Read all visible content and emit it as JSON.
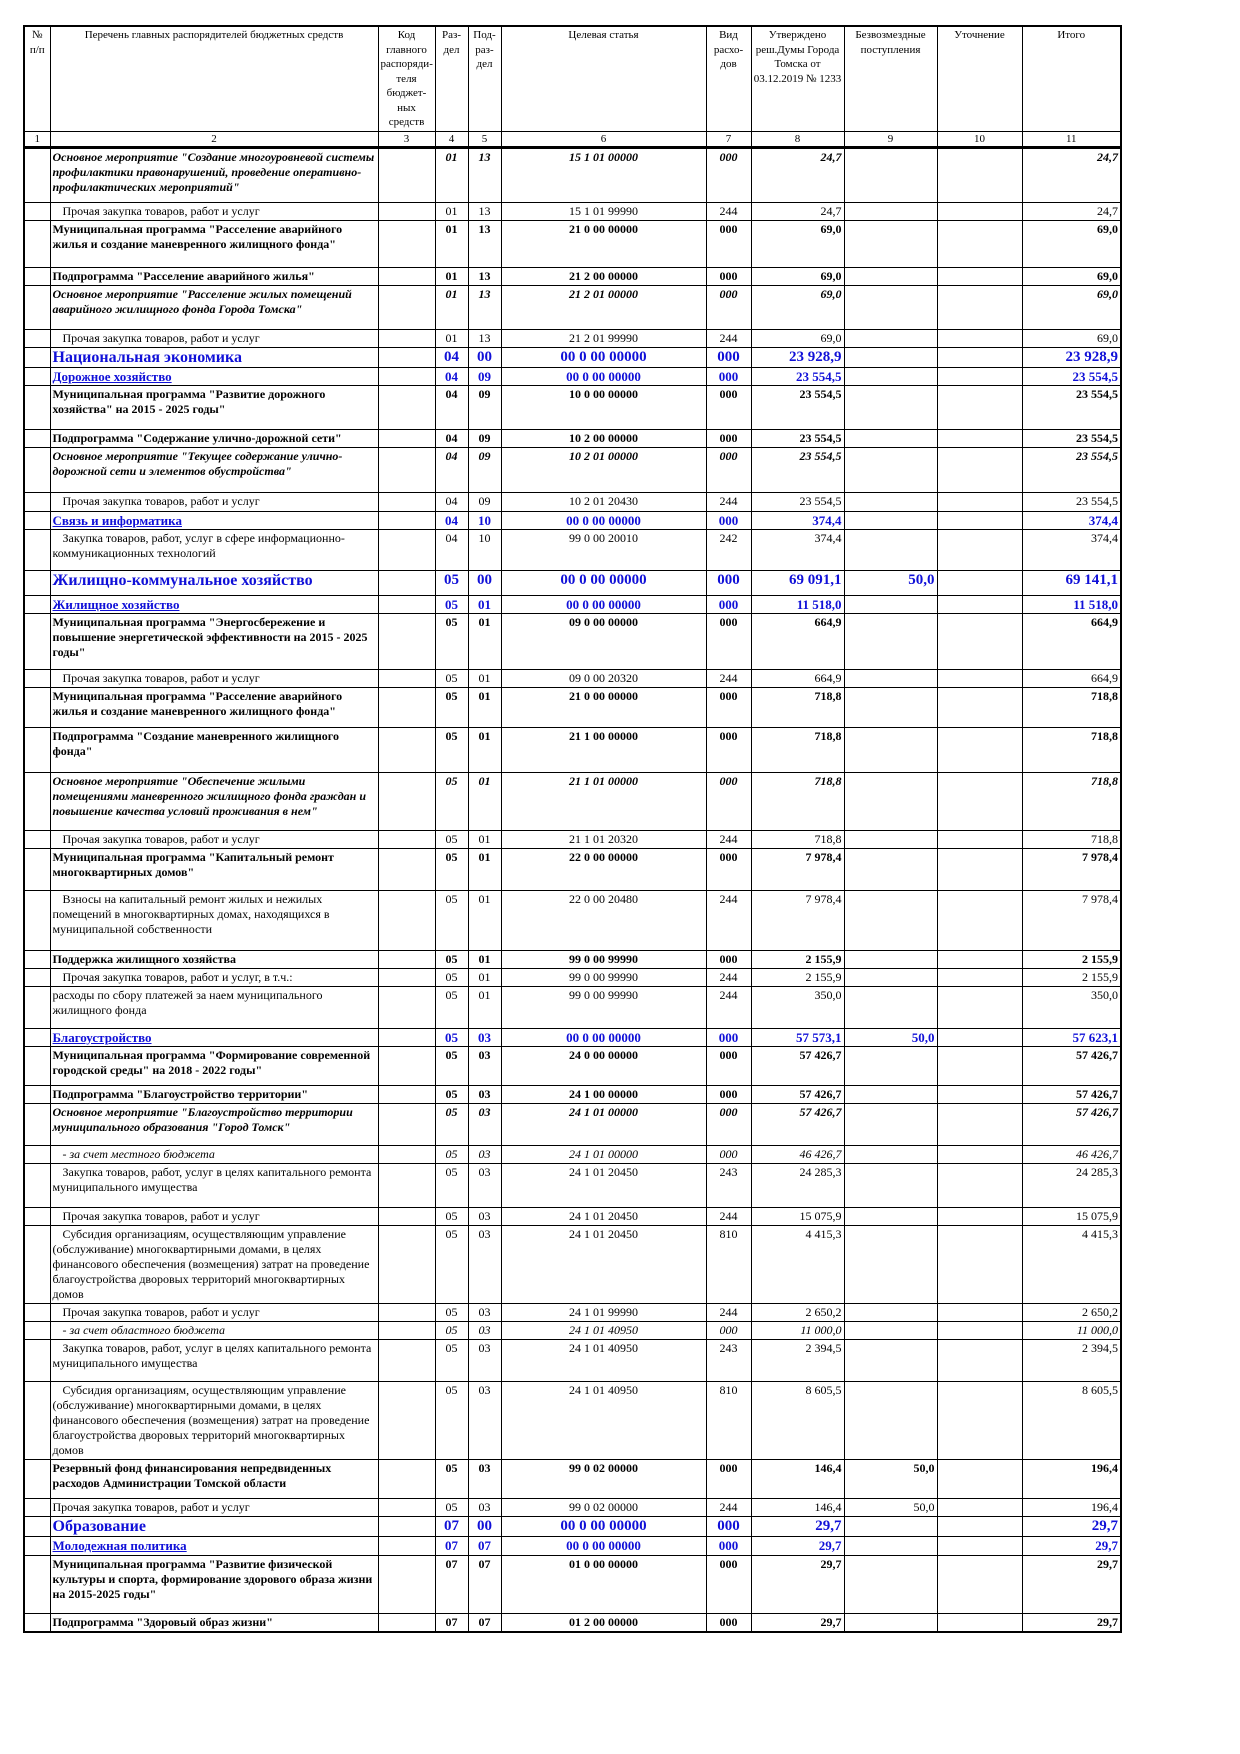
{
  "header": {
    "cols": [
      "№ п/п",
      "Перечень главных распорядителей бюджетных средств",
      "Код главного распоряди-теля бюджет-ных средств",
      "Раз-дел",
      "Под-раз-дел",
      "Целевая статья",
      "Вид расхо-дов",
      "Утверждено реш.Думы Города Томска от 03.12.2019 № 1233",
      "Безвозмездные поступления",
      "Уточнение",
      "Итого"
    ],
    "nums": [
      "1",
      "2",
      "3",
      "4",
      "5",
      "6",
      "7",
      "8",
      "9",
      "10",
      "11"
    ]
  },
  "colors": {
    "section": "#1010d8",
    "text": "#000000"
  },
  "rows": [
    {
      "s": "bi",
      "n": "Основное мероприятие \"Создание многоуровневой системы профилактики правонарушений, проведение оперативно-профилактических мероприятий\"",
      "r": "01",
      "p": "13",
      "t": "15 1 01 00000",
      "v": "000",
      "a": "24,7",
      "g": "",
      "u": "",
      "z": "24,7"
    },
    {
      "s": "n",
      "ind": true,
      "n": "Прочая закупка товаров, работ и услуг",
      "r": "01",
      "p": "13",
      "t": "15 1 01 99990",
      "v": "244",
      "a": "24,7",
      "g": "",
      "u": "",
      "z": "24,7"
    },
    {
      "s": "b",
      "n": "Муниципальная программа \"Расселение аварийного жилья и создание маневренного жилищного фонда\"",
      "r": "01",
      "p": "13",
      "t": "21 0 00 00000",
      "v": "000",
      "a": "69,0",
      "g": "",
      "u": "",
      "z": "69,0"
    },
    {
      "s": "b",
      "n": "Подпрограмма \"Расселение аварийного жилья\"",
      "r": "01",
      "p": "13",
      "t": "21 2 00 00000",
      "v": "000",
      "a": "69,0",
      "g": "",
      "u": "",
      "z": "69,0"
    },
    {
      "s": "bi",
      "n": "Основное мероприятие \"Расселение жилых помещений аварийного жилищного фонда Города Томска\"",
      "r": "01",
      "p": "13",
      "t": "21 2 01 00000",
      "v": "000",
      "a": "69,0",
      "g": "",
      "u": "",
      "z": "69,0"
    },
    {
      "s": "n",
      "ind": true,
      "n": "Прочая закупка товаров, работ и услуг",
      "r": "01",
      "p": "13",
      "t": "21 2 01 99990",
      "v": "244",
      "a": "69,0",
      "g": "",
      "u": "",
      "z": "69,0"
    },
    {
      "s": "sec",
      "n": "Национальная экономика",
      "r": "04",
      "p": "00",
      "t": "00 0 00 00000",
      "v": "000",
      "a": "23 928,9",
      "g": "",
      "u": "",
      "z": "23 928,9"
    },
    {
      "s": "sub",
      "n": "Дорожное хозяйство",
      "r": "04",
      "p": "09",
      "t": "00 0 00 00000",
      "v": "000",
      "a": "23 554,5",
      "g": "",
      "u": "",
      "z": "23 554,5"
    },
    {
      "s": "b",
      "n": "Муниципальная программа \"Развитие дорожного хозяйства\" на 2015 - 2025 годы\"",
      "r": "04",
      "p": "09",
      "t": "10 0 00 00000",
      "v": "000",
      "a": "23 554,5",
      "g": "",
      "u": "",
      "z": "23 554,5"
    },
    {
      "s": "b",
      "n": "Подпрограмма \"Содержание улично-дорожной сети\"",
      "r": "04",
      "p": "09",
      "t": "10 2 00 00000",
      "v": "000",
      "a": "23 554,5",
      "g": "",
      "u": "",
      "z": "23 554,5"
    },
    {
      "s": "bi",
      "n": "Основное мероприятие \"Текущее содержание улично-дорожной сети и элементов обустройства\"",
      "r": "04",
      "p": "09",
      "t": "10 2 01 00000",
      "v": "000",
      "a": "23 554,5",
      "g": "",
      "u": "",
      "z": "23 554,5"
    },
    {
      "s": "n",
      "ind": true,
      "n": "Прочая закупка товаров, работ и услуг",
      "r": "04",
      "p": "09",
      "t": "10 2 01 20430",
      "v": "244",
      "a": "23 554,5",
      "g": "",
      "u": "",
      "z": "23 554,5"
    },
    {
      "s": "sub",
      "n": "Связь и информатика",
      "r": "04",
      "p": "10",
      "t": "00 0 00 00000",
      "v": "000",
      "a": "374,4",
      "g": "",
      "u": "",
      "z": "374,4"
    },
    {
      "s": "n",
      "ind": true,
      "n": "Закупка товаров, работ, услуг в сфере информационно-коммуникационных технологий",
      "r": "04",
      "p": "10",
      "t": "99 0 00 20010",
      "v": "242",
      "a": "374,4",
      "g": "",
      "u": "",
      "z": "374,4"
    },
    {
      "s": "sec",
      "n": "Жилищно-коммунальное хозяйство",
      "r": "05",
      "p": "00",
      "t": "00 0 00 00000",
      "v": "000",
      "a": "69 091,1",
      "g": "50,0",
      "u": "",
      "z": "69 141,1"
    },
    {
      "s": "sub",
      "n": "Жилищное хозяйство",
      "r": "05",
      "p": "01",
      "t": "00 0 00 00000",
      "v": "000",
      "a": "11 518,0",
      "g": "",
      "u": "",
      "z": "11 518,0"
    },
    {
      "s": "b",
      "n": "Муниципальная программа \"Энергосбережение и повышение энергетической эффективности на 2015 - 2025 годы\"",
      "r": "05",
      "p": "01",
      "t": "09 0 00 00000",
      "v": "000",
      "a": "664,9",
      "g": "",
      "u": "",
      "z": "664,9"
    },
    {
      "s": "n",
      "ind": true,
      "n": "Прочая закупка товаров, работ и услуг",
      "r": "05",
      "p": "01",
      "t": "09 0 00 20320",
      "v": "244",
      "a": "664,9",
      "g": "",
      "u": "",
      "z": "664,9"
    },
    {
      "s": "b",
      "n": "Муниципальная программа \"Расселение аварийного жилья и создание маневренного жилищного фонда\"",
      "r": "05",
      "p": "01",
      "t": "21 0 00 00000",
      "v": "000",
      "a": "718,8",
      "g": "",
      "u": "",
      "z": "718,8"
    },
    {
      "s": "b",
      "n": "Подпрограмма \"Создание маневренного жилищного фонда\"",
      "r": "05",
      "p": "01",
      "t": "21 1 00 00000",
      "v": "000",
      "a": "718,8",
      "g": "",
      "u": "",
      "z": "718,8"
    },
    {
      "s": "bi",
      "n": "Основное мероприятие \"Обеспечение жилыми помещениями маневренного жилищного фонда граждан и повышение качества условий проживания в нем\"",
      "r": "05",
      "p": "01",
      "t": "21 1 01 00000",
      "v": "000",
      "a": "718,8",
      "g": "",
      "u": "",
      "z": "718,8"
    },
    {
      "s": "n",
      "ind": true,
      "n": "Прочая закупка товаров, работ и услуг",
      "r": "05",
      "p": "01",
      "t": "21 1 01 20320",
      "v": "244",
      "a": "718,8",
      "g": "",
      "u": "",
      "z": "718,8"
    },
    {
      "s": "b",
      "n": "Муниципальная программа \"Капитальный ремонт многоквартирных домов\"",
      "r": "05",
      "p": "01",
      "t": "22 0 00 00000",
      "v": "000",
      "a": "7 978,4",
      "g": "",
      "u": "",
      "z": "7 978,4"
    },
    {
      "s": "n",
      "ind": true,
      "n": "Взносы на капитальный ремонт жилых и нежилых помещений в многоквартирных домах, находящихся в муниципальной собственности",
      "r": "05",
      "p": "01",
      "t": "22 0 00 20480",
      "v": "244",
      "a": "7 978,4",
      "g": "",
      "u": "",
      "z": "7 978,4"
    },
    {
      "s": "b",
      "n": "Поддержка жилищного хозяйства",
      "r": "05",
      "p": "01",
      "t": "99 0 00 99990",
      "v": "000",
      "a": "2 155,9",
      "g": "",
      "u": "",
      "z": "2 155,9"
    },
    {
      "s": "n",
      "ind": true,
      "n": "Прочая закупка товаров, работ и услуг, в т.ч.:",
      "r": "05",
      "p": "01",
      "t": "99 0 00 99990",
      "v": "244",
      "a": "2 155,9",
      "g": "",
      "u": "",
      "z": "2 155,9"
    },
    {
      "s": "n",
      "n": "расходы по сбору платежей за наем муниципального жилищного фонда",
      "r": "05",
      "p": "01",
      "t": "99 0 00 99990",
      "v": "244",
      "a": "350,0",
      "g": "",
      "u": "",
      "z": "350,0"
    },
    {
      "s": "sub",
      "n": "Благоустройство",
      "r": "05",
      "p": "03",
      "t": "00 0 00 00000",
      "v": "000",
      "a": "57 573,1",
      "g": "50,0",
      "u": "",
      "z": "57 623,1"
    },
    {
      "s": "b",
      "n": "Муниципальная программа \"Формирование современной городской среды\" на 2018 - 2022 годы\"",
      "r": "05",
      "p": "03",
      "t": "24 0 00 00000",
      "v": "000",
      "a": "57 426,7",
      "g": "",
      "u": "",
      "z": "57 426,7"
    },
    {
      "s": "b",
      "n": "Подпрограмма \"Благоустройство территории\"",
      "r": "05",
      "p": "03",
      "t": "24 1 00 00000",
      "v": "000",
      "a": "57 426,7",
      "g": "",
      "u": "",
      "z": "57 426,7"
    },
    {
      "s": "bi",
      "n": "Основное мероприятие \"Благоустройство территории муниципального образования \"Город Томск\"",
      "r": "05",
      "p": "03",
      "t": "24 1 01 00000",
      "v": "000",
      "a": "57 426,7",
      "g": "",
      "u": "",
      "z": "57 426,7"
    },
    {
      "s": "i",
      "ind": true,
      "n": "- за счет местного бюджета",
      "r": "05",
      "p": "03",
      "t": "24 1 01 00000",
      "v": "000",
      "a": "46 426,7",
      "g": "",
      "u": "",
      "z": "46 426,7"
    },
    {
      "s": "n",
      "ind": true,
      "n": "Закупка товаров, работ, услуг в целях капитального ремонта муниципального имущества",
      "r": "05",
      "p": "03",
      "t": "24 1 01 20450",
      "v": "243",
      "a": "24 285,3",
      "g": "",
      "u": "",
      "z": "24 285,3"
    },
    {
      "s": "n",
      "ind": true,
      "n": "Прочая закупка товаров, работ и услуг",
      "r": "05",
      "p": "03",
      "t": "24 1 01 20450",
      "v": "244",
      "a": "15 075,9",
      "g": "",
      "u": "",
      "z": "15 075,9"
    },
    {
      "s": "n",
      "ind": true,
      "n": "Субсидия организациям, осуществляющим управление (обслуживание) многоквартирными домами, в целях финансового обеспечения (возмещения) затрат на проведение благоустройства дворовых территорий многоквартирных домов",
      "r": "05",
      "p": "03",
      "t": "24 1 01 20450",
      "v": "810",
      "a": "4 415,3",
      "g": "",
      "u": "",
      "z": "4 415,3"
    },
    {
      "s": "n",
      "ind": true,
      "n": "Прочая закупка товаров, работ и услуг",
      "r": "05",
      "p": "03",
      "t": "24 1 01 99990",
      "v": "244",
      "a": "2 650,2",
      "g": "",
      "u": "",
      "z": "2 650,2"
    },
    {
      "s": "i",
      "ind": true,
      "n": "- за счет областного бюджета",
      "r": "05",
      "p": "03",
      "t": "24 1 01 40950",
      "v": "000",
      "a": "11 000,0",
      "g": "",
      "u": "",
      "z": "11 000,0"
    },
    {
      "s": "n",
      "ind": true,
      "n": "Закупка товаров, работ, услуг в целях капитального ремонта муниципального имущества",
      "r": "05",
      "p": "03",
      "t": "24 1 01 40950",
      "v": "243",
      "a": "2 394,5",
      "g": "",
      "u": "",
      "z": "2 394,5"
    },
    {
      "s": "n",
      "ind": true,
      "n": "Субсидия организациям, осуществляющим управление (обслуживание) многоквартирными домами, в целях финансового обеспечения (возмещения) затрат на проведение благоустройства дворовых территорий многоквартирных домов",
      "r": "05",
      "p": "03",
      "t": "24 1 01 40950",
      "v": "810",
      "a": "8 605,5",
      "g": "",
      "u": "",
      "z": "8 605,5"
    },
    {
      "s": "b",
      "n": "Резервный фонд финансирования непредвиденных расходов Администрации Томской области",
      "r": "05",
      "p": "03",
      "t": "99 0 02 00000",
      "v": "000",
      "a": "146,4",
      "g": "50,0",
      "u": "",
      "z": "196,4"
    },
    {
      "s": "n",
      "n": "Прочая закупка товаров, работ и услуг",
      "r": "05",
      "p": "03",
      "t": "99 0 02 00000",
      "v": "244",
      "a": "146,4",
      "g": "50,0",
      "u": "",
      "z": "196,4"
    },
    {
      "s": "sec",
      "n": "Образование",
      "r": "07",
      "p": "00",
      "t": "00 0 00 00000",
      "v": "000",
      "a": "29,7",
      "g": "",
      "u": "",
      "z": "29,7"
    },
    {
      "s": "sub",
      "n": "Молодежная политика",
      "r": "07",
      "p": "07",
      "t": "00 0 00 00000",
      "v": "000",
      "a": "29,7",
      "g": "",
      "u": "",
      "z": "29,7"
    },
    {
      "s": "b",
      "n": "Муниципальная программа \"Развитие физической культуры и спорта, формирование здорового образа жизни на 2015-2025 годы\"",
      "r": "07",
      "p": "07",
      "t": "01 0 00 00000",
      "v": "000",
      "a": "29,7",
      "g": "",
      "u": "",
      "z": "29,7"
    },
    {
      "s": "b",
      "n": "Подпрограмма \"Здоровый образ жизни\"",
      "r": "07",
      "p": "07",
      "t": "01 2 00 00000",
      "v": "000",
      "a": "29,7",
      "g": "",
      "u": "",
      "z": "29,7"
    }
  ]
}
